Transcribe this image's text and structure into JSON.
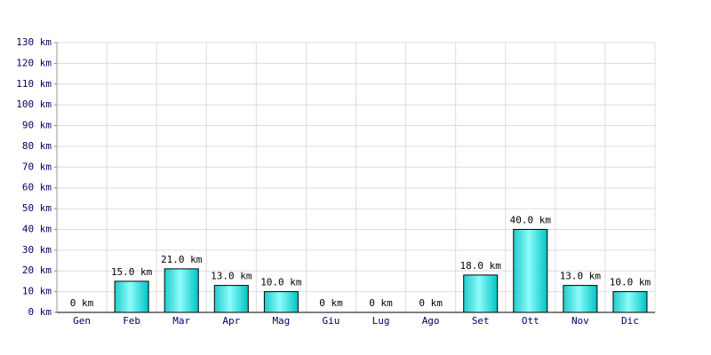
{
  "chart_data": {
    "type": "bar",
    "categories": [
      "Gen",
      "Feb",
      "Mar",
      "Apr",
      "Mag",
      "Giu",
      "Lug",
      "Ago",
      "Set",
      "Ott",
      "Nov",
      "Dic"
    ],
    "values": [
      0,
      15,
      21,
      13,
      10,
      0,
      0,
      0,
      18,
      40,
      13,
      10
    ],
    "value_labels": [
      "0 km",
      "15.0 km",
      "21.0 km",
      "13.0 km",
      "10.0 km",
      "0 km",
      "0 km",
      "0 km",
      "18.0 km",
      "40.0 km",
      "13.0 km",
      "10.0 km"
    ],
    "color": "#00c4c4",
    "ylim": [
      0,
      130
    ],
    "yticks": [
      {
        "value": 0,
        "label": "0 km"
      },
      {
        "value": 10,
        "label": "10 km"
      },
      {
        "value": 20,
        "label": "20 km"
      },
      {
        "value": 30,
        "label": "30 km"
      },
      {
        "value": 40,
        "label": "40 km"
      },
      {
        "value": 50,
        "label": "50 km"
      },
      {
        "value": 60,
        "label": "60 km"
      },
      {
        "value": 70,
        "label": "70 km"
      },
      {
        "value": 80,
        "label": "80 km"
      },
      {
        "value": 90,
        "label": "90 km"
      },
      {
        "value": 100,
        "label": "100 km"
      },
      {
        "value": 110,
        "label": "110 km"
      },
      {
        "value": 120,
        "label": "120 km"
      },
      {
        "value": 130,
        "label": "130 km"
      }
    ],
    "grid": true
  }
}
